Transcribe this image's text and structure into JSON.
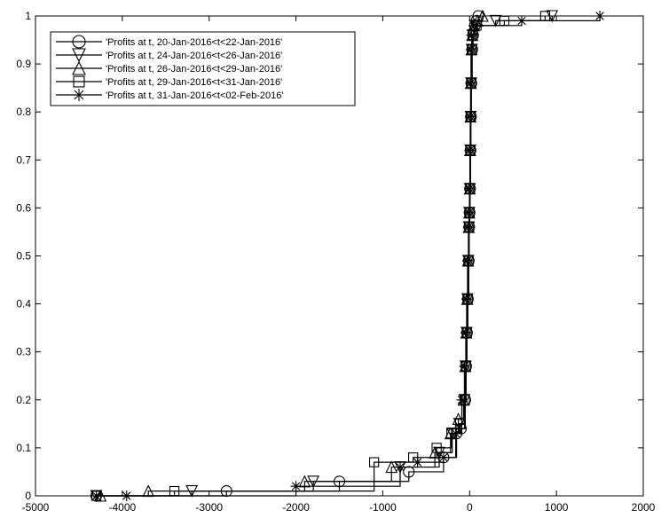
{
  "chart_data": {
    "type": "line",
    "title": "",
    "xlabel": "",
    "ylabel": "",
    "xlim": [
      -5000,
      2000
    ],
    "ylim": [
      0,
      1
    ],
    "xticks": [
      -5000,
      -4000,
      -3000,
      -2000,
      -1000,
      0,
      1000,
      2000
    ],
    "xtick_labels": [
      "-5000",
      "-4000",
      "-3000",
      "-2000",
      "-1000",
      "0",
      "1000",
      "2000"
    ],
    "yticks": [
      0,
      0.1,
      0.2,
      0.3,
      0.4,
      0.5,
      0.6,
      0.7,
      0.8,
      0.9,
      1
    ],
    "ytick_labels": [
      "0",
      "0.1",
      "0.2",
      "0.3",
      "0.4",
      "0.5",
      "0.6",
      "0.7",
      "0.8",
      "0.9",
      "1"
    ],
    "grid": false,
    "legend_position": "top-left",
    "line_color": "#000000",
    "series": [
      {
        "name": "'Profits at t,  20-Jan-2016<t<22-Jan-2016'",
        "marker": "circle",
        "x": [
          -4300,
          -2800,
          -1500,
          -700,
          -300,
          -150,
          -100,
          -50,
          -40,
          -30,
          -20,
          -10,
          -5,
          0,
          5,
          10,
          15,
          20,
          30,
          40,
          60,
          80,
          100
        ],
        "y": [
          0.0,
          0.01,
          0.03,
          0.05,
          0.08,
          0.13,
          0.14,
          0.2,
          0.27,
          0.34,
          0.41,
          0.49,
          0.56,
          0.59,
          0.64,
          0.72,
          0.79,
          0.86,
          0.93,
          0.96,
          0.98,
          0.99,
          1.0
        ]
      },
      {
        "name": "'Profits at t,  24-Jan-2016<t<26-Jan-2016'",
        "marker": "triangle-down",
        "x": [
          -4300,
          -3200,
          -1800,
          -800,
          -350,
          -200,
          -120,
          -60,
          -45,
          -35,
          -25,
          -15,
          -8,
          -3,
          3,
          8,
          12,
          18,
          25,
          35,
          60,
          300,
          950
        ],
        "y": [
          0.0,
          0.01,
          0.03,
          0.06,
          0.09,
          0.13,
          0.15,
          0.2,
          0.27,
          0.34,
          0.41,
          0.49,
          0.56,
          0.59,
          0.64,
          0.72,
          0.79,
          0.86,
          0.93,
          0.96,
          0.98,
          0.99,
          1.0
        ]
      },
      {
        "name": "'Profits at t,  26-Jan-2016<t<29-Jan-2016'",
        "marker": "triangle-up",
        "x": [
          -4250,
          -3700,
          -1900,
          -900,
          -400,
          -220,
          -130,
          -70,
          -50,
          -38,
          -28,
          -18,
          -10,
          -4,
          2,
          6,
          10,
          14,
          22,
          30,
          50,
          90,
          150
        ],
        "y": [
          0.0,
          0.01,
          0.03,
          0.06,
          0.09,
          0.13,
          0.16,
          0.2,
          0.27,
          0.34,
          0.41,
          0.49,
          0.56,
          0.59,
          0.64,
          0.72,
          0.79,
          0.86,
          0.93,
          0.96,
          0.98,
          0.99,
          1.0
        ]
      },
      {
        "name": "'Profits at t,  29-Jan-2016<t<31-Jan-2016'",
        "marker": "square",
        "x": [
          -4300,
          -3400,
          -1100,
          -650,
          -380,
          -210,
          -110,
          -55,
          -42,
          -32,
          -22,
          -12,
          -6,
          -1,
          4,
          9,
          13,
          19,
          27,
          36,
          80,
          400,
          870
        ],
        "y": [
          0.0,
          0.01,
          0.07,
          0.08,
          0.1,
          0.13,
          0.15,
          0.2,
          0.27,
          0.34,
          0.41,
          0.49,
          0.56,
          0.59,
          0.64,
          0.72,
          0.79,
          0.86,
          0.93,
          0.96,
          0.98,
          0.99,
          1.0
        ]
      },
      {
        "name": "'Profits at t,  31-Jan-2016<t<02-Feb-2016'",
        "marker": "asterisk",
        "x": [
          -4300,
          -3950,
          -2000,
          -800,
          -600,
          -300,
          -160,
          -90,
          -60,
          -44,
          -34,
          -24,
          -14,
          -7,
          -2,
          3,
          7,
          11,
          16,
          24,
          50,
          600,
          1500
        ],
        "y": [
          0.0,
          0.0,
          0.02,
          0.06,
          0.07,
          0.08,
          0.13,
          0.2,
          0.27,
          0.34,
          0.41,
          0.49,
          0.56,
          0.59,
          0.64,
          0.72,
          0.79,
          0.86,
          0.93,
          0.96,
          0.98,
          0.99,
          1.0
        ]
      }
    ]
  }
}
